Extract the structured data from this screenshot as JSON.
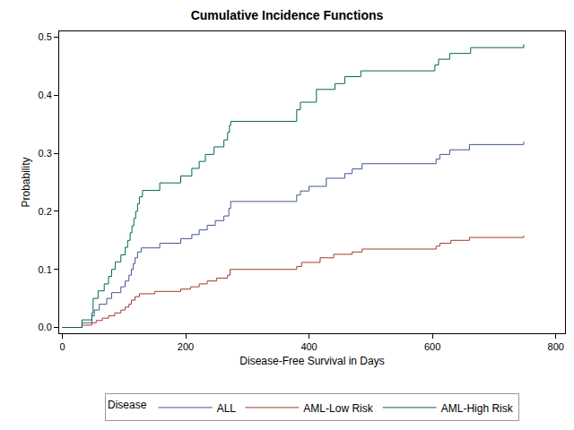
{
  "chart_data": {
    "type": "step",
    "title": "Cumulative Incidence Functions",
    "xlabel": "Disease-Free Survival in Days",
    "ylabel": "Probability",
    "legend_title": "Disease",
    "legend": "bottom",
    "grid": false,
    "xlim": [
      -5,
      815
    ],
    "xticks": [
      0,
      200,
      400,
      600,
      800
    ],
    "ylim": [
      -0.01,
      0.51
    ],
    "yticks": [
      {
        "value": 0,
        "label": "0.0"
      },
      {
        "value": 0.1,
        "label": "0.1"
      },
      {
        "value": 0.2,
        "label": "0.2"
      },
      {
        "value": 0.3,
        "label": "0.3"
      },
      {
        "value": 0.4,
        "label": "0.4"
      },
      {
        "value": 0.5,
        "label": "0.5"
      }
    ],
    "series": [
      {
        "name": "ALL",
        "color": "#445694",
        "x": [
          0,
          32,
          48,
          52,
          60,
          72,
          80,
          95,
          102,
          108,
          112,
          115,
          118,
          122,
          128,
          158,
          192,
          210,
          222,
          235,
          248,
          262,
          270,
          273,
          380,
          386,
          400,
          428,
          458,
          470,
          486,
          606,
          612,
          628,
          660,
          748
        ],
        "values": [
          0,
          0.008,
          0.02,
          0.03,
          0.04,
          0.05,
          0.06,
          0.07,
          0.08,
          0.09,
          0.1,
          0.11,
          0.12,
          0.13,
          0.137,
          0.145,
          0.153,
          0.16,
          0.168,
          0.176,
          0.184,
          0.192,
          0.205,
          0.217,
          0.228,
          0.235,
          0.243,
          0.257,
          0.265,
          0.273,
          0.282,
          0.29,
          0.298,
          0.306,
          0.315,
          0.32
        ]
      },
      {
        "name": "AML-Low Risk",
        "color": "#A23A2E",
        "x": [
          0,
          32,
          48,
          55,
          65,
          75,
          85,
          95,
          102,
          108,
          112,
          118,
          125,
          150,
          192,
          208,
          222,
          235,
          250,
          268,
          272,
          380,
          388,
          418,
          440,
          470,
          486,
          606,
          612,
          630,
          660,
          748
        ],
        "values": [
          0,
          0.004,
          0.008,
          0.012,
          0.016,
          0.02,
          0.025,
          0.03,
          0.035,
          0.04,
          0.047,
          0.053,
          0.058,
          0.062,
          0.066,
          0.07,
          0.075,
          0.08,
          0.085,
          0.09,
          0.1,
          0.105,
          0.112,
          0.12,
          0.126,
          0.13,
          0.135,
          0.14,
          0.145,
          0.15,
          0.155,
          0.158
        ]
      },
      {
        "name": "AML-High Risk",
        "color": "#01665E",
        "x": [
          0,
          32,
          48,
          50,
          58,
          68,
          75,
          80,
          86,
          95,
          102,
          106,
          110,
          113,
          116,
          119,
          122,
          125,
          130,
          158,
          192,
          210,
          222,
          232,
          246,
          262,
          268,
          271,
          273,
          380,
          386,
          412,
          442,
          458,
          484,
          604,
          610,
          628,
          662,
          748
        ],
        "values": [
          0,
          0.013,
          0.025,
          0.05,
          0.063,
          0.075,
          0.088,
          0.1,
          0.113,
          0.125,
          0.138,
          0.15,
          0.163,
          0.175,
          0.188,
          0.2,
          0.213,
          0.225,
          0.236,
          0.249,
          0.261,
          0.274,
          0.286,
          0.298,
          0.311,
          0.323,
          0.336,
          0.348,
          0.355,
          0.375,
          0.388,
          0.41,
          0.42,
          0.432,
          0.442,
          0.452,
          0.462,
          0.472,
          0.482,
          0.488
        ]
      }
    ]
  }
}
